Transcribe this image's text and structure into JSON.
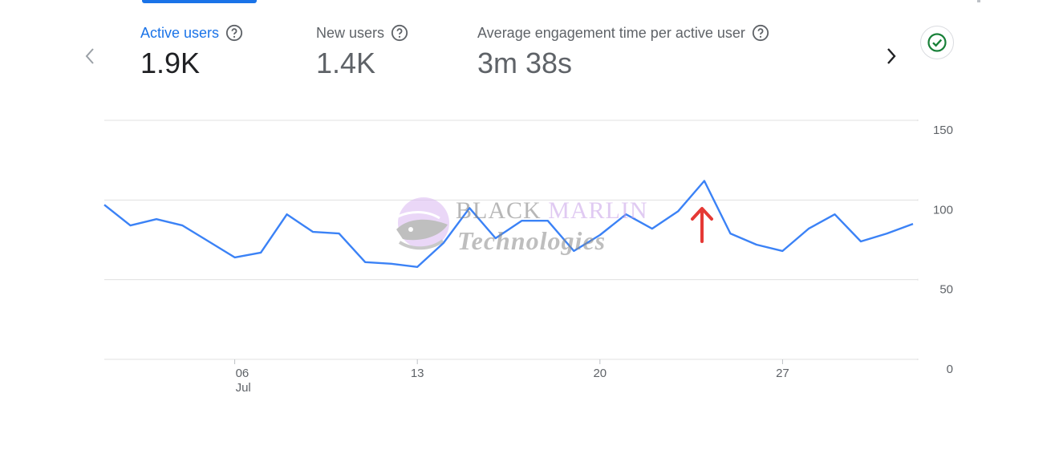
{
  "metrics": [
    {
      "label": "Active users",
      "value": "1.9K",
      "selected": true
    },
    {
      "label": "New users",
      "value": "1.4K",
      "selected": false
    },
    {
      "label": "Average engagement time per active user",
      "value": "3m 38s",
      "selected": false
    }
  ],
  "icons": {
    "prev": "chevron-left-icon",
    "next": "chevron-right-icon",
    "help": "help-circle-icon",
    "status": "check-circle-icon",
    "annotation": "red-up-arrow"
  },
  "colors": {
    "accent": "#1a73e8",
    "series_line": "#3b82f6",
    "status_green": "#188038",
    "annotation_red": "#e53935",
    "gridline": "#e0e0e0"
  },
  "watermark": {
    "line1_a": "BLACK",
    "line1_b": "MARLIN",
    "line2": "Technologies"
  },
  "chart_data": {
    "type": "line",
    "series": [
      {
        "values": [
          97,
          84,
          88,
          84,
          74,
          64,
          67,
          91,
          80,
          79,
          61,
          60,
          58,
          73,
          95,
          76,
          87,
          87,
          68,
          78,
          91,
          82,
          93,
          112,
          79,
          72,
          68,
          82,
          91,
          74,
          79,
          85
        ]
      }
    ],
    "x_ticks": [
      {
        "index": 5,
        "label": "06",
        "sublabel": "Jul"
      },
      {
        "index": 12,
        "label": "13",
        "sublabel": ""
      },
      {
        "index": 19,
        "label": "20",
        "sublabel": ""
      },
      {
        "index": 26,
        "label": "27",
        "sublabel": ""
      }
    ],
    "y_ticks": [
      0,
      50,
      100,
      150
    ],
    "ylim": [
      0,
      150
    ],
    "grid": true,
    "y_axis_side": "right"
  }
}
